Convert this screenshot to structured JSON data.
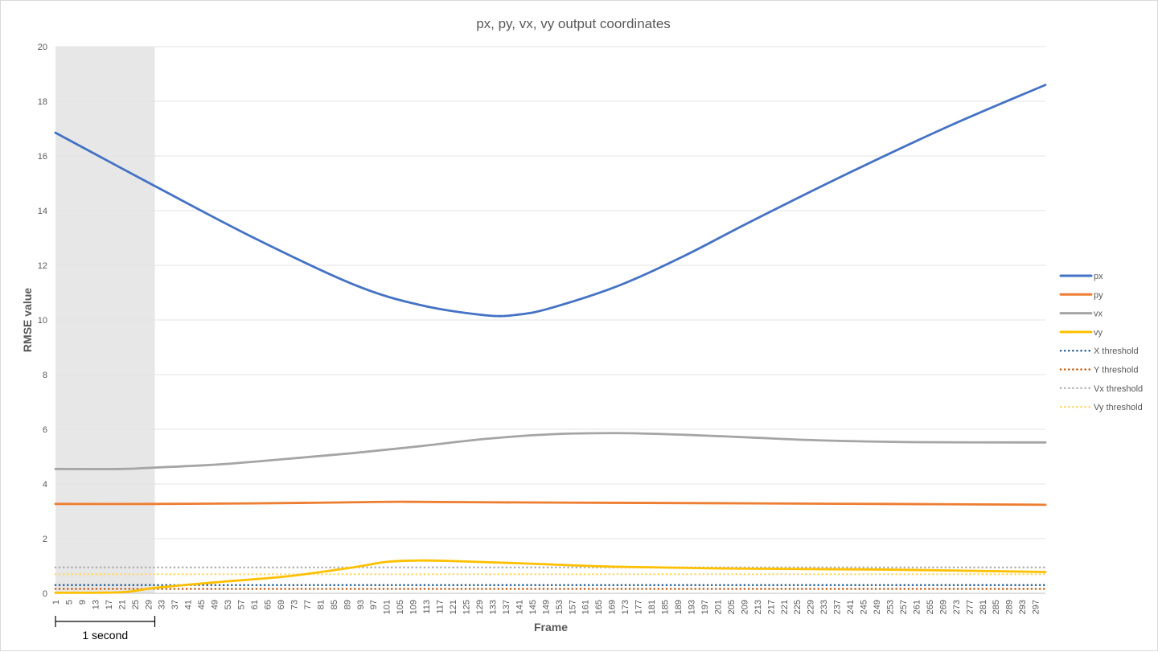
{
  "chart_data": {
    "type": "line",
    "title": "px, py, vx, vy output coordinates",
    "xlabel": "Frame",
    "ylabel": "RMSE value",
    "ylim": [
      0,
      20
    ],
    "yticks": [
      0,
      2,
      4,
      6,
      8,
      10,
      12,
      14,
      16,
      18,
      20
    ],
    "xlim": [
      1,
      300
    ],
    "xtick_start": 1,
    "xtick_step": 4,
    "xtick_end": 297,
    "grid": true,
    "legend_position": "right",
    "shaded_region": {
      "x": [
        1,
        31
      ],
      "label": "1 second",
      "color": "#e7e7e7"
    },
    "series": [
      {
        "name": "px",
        "color": "#4472c4",
        "style": "solid",
        "x": [
          1,
          31,
          61,
          91,
          111,
          131,
          141,
          151,
          171,
          191,
          211,
          241,
          271,
          300
        ],
        "y": [
          16.85,
          14.9,
          13.0,
          11.3,
          10.55,
          10.17,
          10.2,
          10.45,
          11.25,
          12.35,
          13.6,
          15.4,
          17.1,
          18.6
        ]
      },
      {
        "name": "py",
        "color": "#ed7d31",
        "style": "solid",
        "x": [
          1,
          31,
          61,
          91,
          105,
          131,
          171,
          211,
          251,
          300
        ],
        "y": [
          3.27,
          3.27,
          3.29,
          3.33,
          3.35,
          3.33,
          3.31,
          3.29,
          3.27,
          3.24
        ]
      },
      {
        "name": "vx",
        "color": "#a5a5a5",
        "style": "solid",
        "x": [
          1,
          21,
          31,
          51,
          71,
          91,
          111,
          131,
          151,
          171,
          191,
          211,
          231,
          261,
          300
        ],
        "y": [
          4.55,
          4.55,
          4.6,
          4.72,
          4.92,
          5.13,
          5.38,
          5.65,
          5.82,
          5.86,
          5.8,
          5.7,
          5.6,
          5.53,
          5.52
        ]
      },
      {
        "name": "vy",
        "color": "#ffc000",
        "style": "solid",
        "x": [
          1,
          21,
          31,
          51,
          71,
          91,
          101,
          111,
          121,
          141,
          171,
          211,
          251,
          300
        ],
        "y": [
          0.02,
          0.04,
          0.2,
          0.42,
          0.62,
          0.95,
          1.15,
          1.2,
          1.18,
          1.1,
          0.97,
          0.9,
          0.87,
          0.78
        ]
      },
      {
        "name": "X threshold",
        "color": "#255e91",
        "style": "dotted",
        "x": [
          1,
          300
        ],
        "y": [
          0.3,
          0.3
        ]
      },
      {
        "name": "Y threshold",
        "color": "#c55a11",
        "style": "dotted",
        "x": [
          1,
          300
        ],
        "y": [
          0.16,
          0.16
        ]
      },
      {
        "name": "Vx threshold",
        "color": "#b0b0b0",
        "style": "dotted",
        "x": [
          1,
          300
        ],
        "y": [
          0.95,
          0.95
        ]
      },
      {
        "name": "Vy threshold",
        "color": "#ffd966",
        "style": "dotted",
        "x": [
          1,
          300
        ],
        "y": [
          0.7,
          0.7
        ]
      }
    ]
  }
}
